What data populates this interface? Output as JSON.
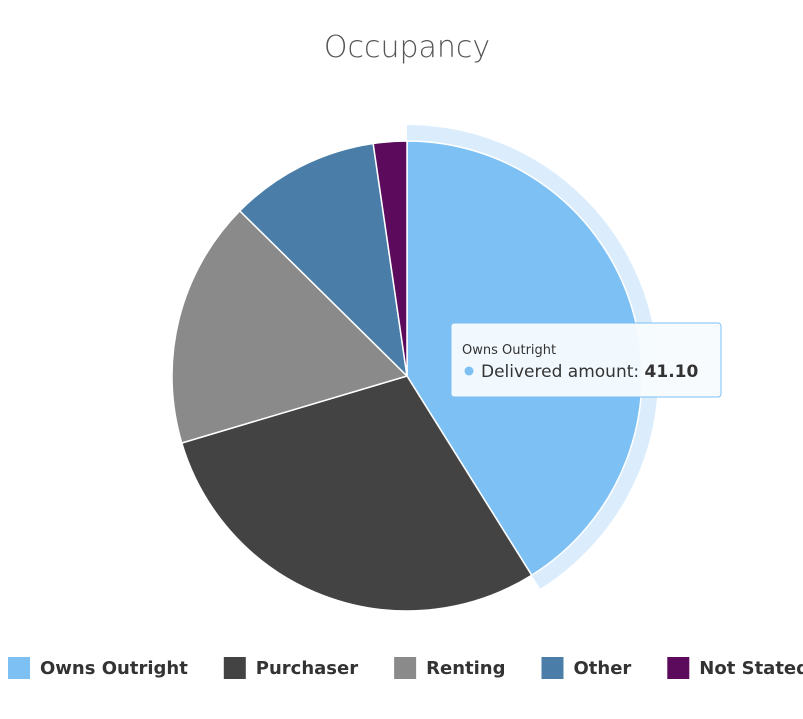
{
  "chart_data": {
    "type": "pie",
    "title": "Occupancy",
    "categories": [
      "Owns Outright",
      "Purchaser",
      "Renting",
      "Other",
      "Not Stated"
    ],
    "values": [
      41.1,
      29.3,
      17.0,
      10.3,
      2.3
    ],
    "colors": [
      "#7cc0f4",
      "#434343",
      "#8a8a8a",
      "#4a7ea8",
      "#5c0a5c"
    ],
    "hovered_index": 0,
    "legend": {
      "position": "bottom",
      "items": [
        {
          "label": "Owns Outright",
          "color": "#7cc0f4"
        },
        {
          "label": "Purchaser",
          "color": "#434343"
        },
        {
          "label": "Renting",
          "color": "#8a8a8a"
        },
        {
          "label": "Other",
          "color": "#4a7ea8"
        },
        {
          "label": "Not Stated",
          "color": "#5c0a5c"
        }
      ]
    },
    "tooltip": {
      "title": "Owns Outright",
      "series_name": "Delivered amount",
      "value": "41.10"
    }
  }
}
